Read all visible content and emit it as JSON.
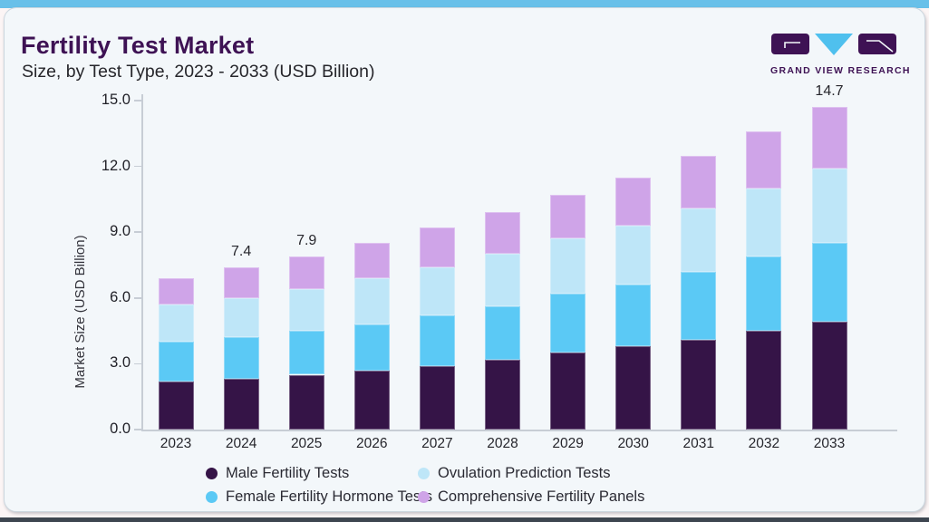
{
  "header": {
    "title": "Fertility Test Market",
    "subtitle": "Size, by Test Type, 2023 - 2033 (USD Billion)"
  },
  "logo": {
    "text": "GRAND VIEW RESEARCH"
  },
  "palette": {
    "brand_purple": "#3e1254",
    "top_strip": "#68c0e9",
    "bottom_strip": "#3e4650",
    "card_bg": "#f3f7fa"
  },
  "chart_data": {
    "type": "bar",
    "variant": "stacked",
    "title": "Fertility Test Market",
    "subtitle": "Size, by Test Type, 2023 - 2033 (USD Billion)",
    "xlabel": "",
    "ylabel": "Market Size (USD Billion)",
    "ylim": [
      0,
      15
    ],
    "yticks": [
      "0.0",
      "3.0",
      "6.0",
      "9.0",
      "12.0",
      "15.0"
    ],
    "grid": false,
    "legend_position": "bottom",
    "categories": [
      "2023",
      "2024",
      "2025",
      "2026",
      "2027",
      "2028",
      "2029",
      "2030",
      "2031",
      "2032",
      "2033"
    ],
    "series": [
      {
        "name": "Male Fertility Tests",
        "color": "#351447",
        "values": [
          2.2,
          2.3,
          2.5,
          2.7,
          2.9,
          3.2,
          3.5,
          3.8,
          4.1,
          4.5,
          4.9
        ]
      },
      {
        "name": "Female Fertility Hormone Tests",
        "color": "#5bc9f5",
        "values": [
          1.8,
          1.9,
          2.0,
          2.1,
          2.3,
          2.4,
          2.7,
          2.8,
          3.1,
          3.4,
          3.6
        ]
      },
      {
        "name": "Ovulation Prediction Tests",
        "color": "#bee6f8",
        "values": [
          1.7,
          1.8,
          1.9,
          2.1,
          2.2,
          2.4,
          2.5,
          2.7,
          2.9,
          3.1,
          3.4
        ]
      },
      {
        "name": "Comprehensive Fertility Panels",
        "color": "#cfa4e8",
        "values": [
          1.2,
          1.4,
          1.5,
          1.6,
          1.8,
          1.9,
          2.0,
          2.2,
          2.4,
          2.6,
          2.8
        ]
      }
    ],
    "bar_labels": {
      "2024": "7.4",
      "2025": "7.9",
      "2033": "14.7"
    },
    "legend": [
      {
        "label": "Male Fertility Tests",
        "color": "#351447"
      },
      {
        "label": "Ovulation Prediction Tests",
        "color": "#bee6f8"
      },
      {
        "label": "Female Fertility Hormone Tests",
        "color": "#5bc9f5"
      },
      {
        "label": "Comprehensive Fertility Panels",
        "color": "#cfa4e8"
      }
    ]
  }
}
